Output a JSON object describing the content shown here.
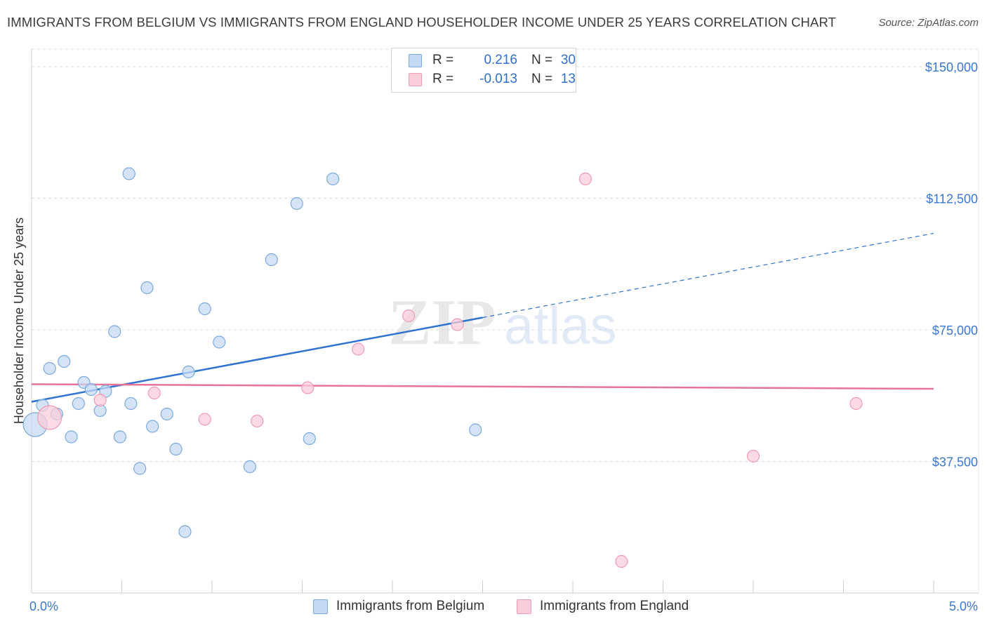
{
  "chart_data": {
    "type": "scatter",
    "title": "IMMIGRANTS FROM BELGIUM VS IMMIGRANTS FROM ENGLAND HOUSEHOLDER INCOME UNDER 25 YEARS CORRELATION CHART",
    "source": "Source: ZipAtlas.com",
    "xlabel": "",
    "ylabel": "Householder Income Under 25 years",
    "xlim": [
      0,
      5
    ],
    "ylim": [
      0,
      155000
    ],
    "x_tick_labels": [
      "0.0%",
      "5.0%"
    ],
    "y_ticks": [
      37500,
      75000,
      112500,
      150000
    ],
    "y_tick_labels": [
      "$37,500",
      "$75,000",
      "$112,500",
      "$150,000"
    ],
    "watermark": "ZIPatlas",
    "colors": {
      "belgium_fill": "#c5d9f3",
      "belgium_stroke": "#7aa8e0",
      "belgium_line": "#2f73d0",
      "england_fill": "#f9cdd9",
      "england_stroke": "#f09ab3",
      "england_line": "#e8739a",
      "tick_label": "#3a78d2"
    },
    "legend": [
      {
        "r_label": "R =",
        "r_value": "0.216",
        "n_label": "N =",
        "n_value": "30"
      },
      {
        "r_label": "R =",
        "r_value": "-0.013",
        "n_label": "N =",
        "n_value": "13"
      }
    ],
    "series": [
      {
        "name": "Immigrants from Belgium",
        "points": [
          {
            "x": 0.02,
            "y": 48000,
            "size": "large"
          },
          {
            "x": 0.06,
            "y": 53500
          },
          {
            "x": 0.1,
            "y": 64000
          },
          {
            "x": 0.14,
            "y": 51000
          },
          {
            "x": 0.18,
            "y": 66000
          },
          {
            "x": 0.22,
            "y": 44500
          },
          {
            "x": 0.26,
            "y": 54000
          },
          {
            "x": 0.29,
            "y": 60000
          },
          {
            "x": 0.33,
            "y": 58000
          },
          {
            "x": 0.38,
            "y": 52000
          },
          {
            "x": 0.41,
            "y": 57500
          },
          {
            "x": 0.46,
            "y": 74500
          },
          {
            "x": 0.49,
            "y": 44500
          },
          {
            "x": 0.54,
            "y": 119500
          },
          {
            "x": 0.55,
            "y": 54000
          },
          {
            "x": 0.6,
            "y": 35500
          },
          {
            "x": 0.64,
            "y": 87000
          },
          {
            "x": 0.67,
            "y": 47500
          },
          {
            "x": 0.75,
            "y": 51000
          },
          {
            "x": 0.8,
            "y": 41000
          },
          {
            "x": 0.85,
            "y": 17500
          },
          {
            "x": 0.87,
            "y": 63000
          },
          {
            "x": 0.96,
            "y": 81000
          },
          {
            "x": 1.04,
            "y": 71500
          },
          {
            "x": 1.21,
            "y": 36000
          },
          {
            "x": 1.33,
            "y": 95000
          },
          {
            "x": 1.47,
            "y": 111000
          },
          {
            "x": 1.54,
            "y": 44000
          },
          {
            "x": 1.67,
            "y": 118000
          },
          {
            "x": 2.46,
            "y": 46500
          }
        ],
        "trend": {
          "x0": 0,
          "y0": 54500,
          "x1": 2.5,
          "y1": 78500,
          "dash_x1": 5,
          "dash_y1": 102500
        }
      },
      {
        "name": "Immigrants from England",
        "points": [
          {
            "x": 0.1,
            "y": 50000,
            "size": "large"
          },
          {
            "x": 0.38,
            "y": 55000
          },
          {
            "x": 0.68,
            "y": 57000
          },
          {
            "x": 0.96,
            "y": 49500
          },
          {
            "x": 1.25,
            "y": 49000
          },
          {
            "x": 1.53,
            "y": 58500
          },
          {
            "x": 1.81,
            "y": 69500
          },
          {
            "x": 2.09,
            "y": 79000
          },
          {
            "x": 2.36,
            "y": 76500
          },
          {
            "x": 3.07,
            "y": 118000
          },
          {
            "x": 3.27,
            "y": 9000
          },
          {
            "x": 4.0,
            "y": 39000
          },
          {
            "x": 4.57,
            "y": 54000
          }
        ],
        "trend": {
          "x0": 0,
          "y0": 59500,
          "x1": 5,
          "y1": 58200
        }
      }
    ]
  }
}
